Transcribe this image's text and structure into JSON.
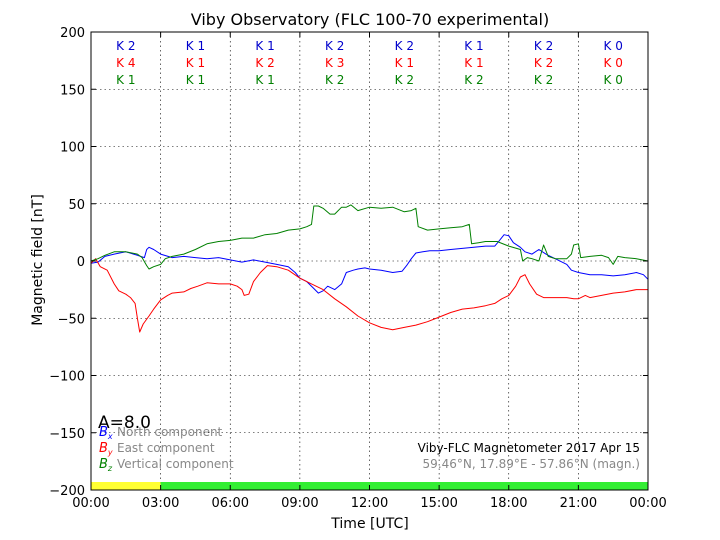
{
  "chart_data": {
    "type": "line",
    "title": "Viby Observatory (FLC 100-70 experimental)",
    "xlabel": "Time [UTC]",
    "ylabel": "Magnetic field [nT]",
    "xlim": [
      0,
      24
    ],
    "ylim": [
      -200,
      200
    ],
    "grid": true,
    "x_tick_values": [
      0,
      3,
      6,
      9,
      12,
      15,
      18,
      21,
      24
    ],
    "x_tick_labels": [
      "00:00",
      "03:00",
      "06:00",
      "09:00",
      "12:00",
      "15:00",
      "18:00",
      "21:00",
      "00:00"
    ],
    "y_ticks": [
      {
        "v": 200,
        "label": "200"
      },
      {
        "v": 150,
        "label": "150"
      },
      {
        "v": 100,
        "label": "100"
      },
      {
        "v": 50,
        "label": "50"
      },
      {
        "v": 0,
        "label": "0"
      },
      {
        "v": -50,
        "label": "−50"
      },
      {
        "v": -100,
        "label": "−100"
      },
      {
        "v": -150,
        "label": "−150"
      },
      {
        "v": -200,
        "label": "−200"
      }
    ],
    "series": [
      {
        "name": "North component",
        "symbol": "B",
        "subscript": "x",
        "color": "#0000ff",
        "points": [
          [
            0,
            -2
          ],
          [
            0.3,
            -1
          ],
          [
            0.6,
            4
          ],
          [
            1,
            6
          ],
          [
            1.5,
            8
          ],
          [
            2,
            5
          ],
          [
            2.3,
            3
          ],
          [
            2.4,
            10
          ],
          [
            2.5,
            12
          ],
          [
            2.7,
            10
          ],
          [
            3,
            6
          ],
          [
            3.5,
            3
          ],
          [
            4,
            4
          ],
          [
            4.5,
            3
          ],
          [
            5,
            2
          ],
          [
            5.5,
            3
          ],
          [
            6,
            1
          ],
          [
            6.5,
            -1
          ],
          [
            7,
            1
          ],
          [
            7.5,
            -1
          ],
          [
            8,
            -3
          ],
          [
            8.5,
            -5
          ],
          [
            8.8,
            -10
          ],
          [
            9,
            -15
          ],
          [
            9.3,
            -18
          ],
          [
            9.6,
            -24
          ],
          [
            9.8,
            -28
          ],
          [
            10,
            -26
          ],
          [
            10.2,
            -22
          ],
          [
            10.5,
            -25
          ],
          [
            10.8,
            -20
          ],
          [
            11,
            -10
          ],
          [
            11.3,
            -8
          ],
          [
            11.5,
            -7
          ],
          [
            11.8,
            -6
          ],
          [
            12,
            -7
          ],
          [
            12.5,
            -8
          ],
          [
            13,
            -10
          ],
          [
            13.4,
            -9
          ],
          [
            13.6,
            -4
          ],
          [
            13.8,
            2
          ],
          [
            14,
            7
          ],
          [
            14.3,
            8
          ],
          [
            14.6,
            9
          ],
          [
            15,
            9
          ],
          [
            15.5,
            10
          ],
          [
            16,
            11
          ],
          [
            16.5,
            12
          ],
          [
            17,
            13
          ],
          [
            17.4,
            13
          ],
          [
            17.6,
            18
          ],
          [
            17.8,
            23
          ],
          [
            18,
            22
          ],
          [
            18.2,
            16
          ],
          [
            18.5,
            12
          ],
          [
            18.7,
            8
          ],
          [
            19,
            6
          ],
          [
            19.3,
            10
          ],
          [
            19.6,
            6
          ],
          [
            19.8,
            4
          ],
          [
            20,
            2
          ],
          [
            20.5,
            -3
          ],
          [
            20.7,
            -8
          ],
          [
            21,
            -10
          ],
          [
            21.5,
            -12
          ],
          [
            22,
            -12
          ],
          [
            22.5,
            -13
          ],
          [
            23,
            -12
          ],
          [
            23.5,
            -10
          ],
          [
            23.8,
            -12
          ],
          [
            24,
            -16
          ]
        ]
      },
      {
        "name": "East component",
        "symbol": "B",
        "subscript": "y",
        "color": "#ff0000",
        "points": [
          [
            0,
            -2
          ],
          [
            0.2,
            2
          ],
          [
            0.4,
            -5
          ],
          [
            0.7,
            -8
          ],
          [
            1,
            -20
          ],
          [
            1.2,
            -26
          ],
          [
            1.5,
            -29
          ],
          [
            1.7,
            -32
          ],
          [
            1.9,
            -37
          ],
          [
            2,
            -50
          ],
          [
            2.1,
            -62
          ],
          [
            2.25,
            -55
          ],
          [
            2.5,
            -48
          ],
          [
            2.7,
            -42
          ],
          [
            3,
            -34
          ],
          [
            3.3,
            -30
          ],
          [
            3.5,
            -28
          ],
          [
            4,
            -27
          ],
          [
            4.3,
            -24
          ],
          [
            4.6,
            -22
          ],
          [
            5,
            -19
          ],
          [
            5.5,
            -20
          ],
          [
            6,
            -20
          ],
          [
            6.3,
            -22
          ],
          [
            6.5,
            -25
          ],
          [
            6.6,
            -30
          ],
          [
            6.8,
            -29
          ],
          [
            7,
            -18
          ],
          [
            7.3,
            -10
          ],
          [
            7.6,
            -4
          ],
          [
            8,
            -5
          ],
          [
            8.5,
            -8
          ],
          [
            9,
            -15
          ],
          [
            9.5,
            -20
          ],
          [
            10,
            -25
          ],
          [
            10.5,
            -33
          ],
          [
            11,
            -40
          ],
          [
            11.5,
            -48
          ],
          [
            12,
            -54
          ],
          [
            12.5,
            -58
          ],
          [
            13,
            -60
          ],
          [
            13.5,
            -58
          ],
          [
            14,
            -56
          ],
          [
            14.5,
            -53
          ],
          [
            15,
            -49
          ],
          [
            15.5,
            -45
          ],
          [
            16,
            -42
          ],
          [
            16.5,
            -41
          ],
          [
            17,
            -39
          ],
          [
            17.4,
            -37
          ],
          [
            17.7,
            -33
          ],
          [
            18,
            -30
          ],
          [
            18.3,
            -22
          ],
          [
            18.5,
            -14
          ],
          [
            18.7,
            -12
          ],
          [
            18.9,
            -20
          ],
          [
            19.2,
            -29
          ],
          [
            19.5,
            -32
          ],
          [
            20,
            -32
          ],
          [
            20.5,
            -32
          ],
          [
            20.8,
            -33
          ],
          [
            21,
            -33
          ],
          [
            21.3,
            -30
          ],
          [
            21.5,
            -32
          ],
          [
            22,
            -30
          ],
          [
            22.5,
            -28
          ],
          [
            23,
            -27
          ],
          [
            23.5,
            -25
          ],
          [
            24,
            -25
          ]
        ]
      },
      {
        "name": "Vertical component",
        "symbol": "B",
        "subscript": "z",
        "color": "#008000",
        "points": [
          [
            0,
            0
          ],
          [
            0.3,
            2
          ],
          [
            0.6,
            5
          ],
          [
            1,
            8
          ],
          [
            1.5,
            8
          ],
          [
            2,
            6
          ],
          [
            2.2,
            3
          ],
          [
            2.4,
            -4
          ],
          [
            2.5,
            -7
          ],
          [
            2.7,
            -5
          ],
          [
            3,
            -3
          ],
          [
            3.2,
            2
          ],
          [
            3.5,
            4
          ],
          [
            4,
            6
          ],
          [
            4.5,
            10
          ],
          [
            5,
            15
          ],
          [
            5.5,
            17
          ],
          [
            6,
            18
          ],
          [
            6.5,
            20
          ],
          [
            7,
            20
          ],
          [
            7.5,
            23
          ],
          [
            8,
            24
          ],
          [
            8.5,
            27
          ],
          [
            9,
            28
          ],
          [
            9.3,
            30
          ],
          [
            9.5,
            32
          ],
          [
            9.6,
            48
          ],
          [
            9.8,
            48
          ],
          [
            10,
            46
          ],
          [
            10.3,
            41
          ],
          [
            10.5,
            41
          ],
          [
            10.8,
            47
          ],
          [
            11,
            47
          ],
          [
            11.2,
            49
          ],
          [
            11.5,
            44
          ],
          [
            12,
            47
          ],
          [
            12.5,
            46
          ],
          [
            13,
            47
          ],
          [
            13.5,
            43
          ],
          [
            13.8,
            44
          ],
          [
            14,
            46
          ],
          [
            14.1,
            30
          ],
          [
            14.5,
            27
          ],
          [
            15,
            28
          ],
          [
            15.5,
            29
          ],
          [
            16,
            30
          ],
          [
            16.3,
            32
          ],
          [
            16.4,
            15
          ],
          [
            16.7,
            16
          ],
          [
            17,
            17
          ],
          [
            17.5,
            17
          ],
          [
            18,
            13
          ],
          [
            18.5,
            10
          ],
          [
            18.6,
            0
          ],
          [
            18.8,
            3
          ],
          [
            19,
            2
          ],
          [
            19.3,
            0
          ],
          [
            19.5,
            14
          ],
          [
            19.7,
            4
          ],
          [
            20,
            2
          ],
          [
            20.5,
            2
          ],
          [
            20.7,
            6
          ],
          [
            20.8,
            14
          ],
          [
            21,
            15
          ],
          [
            21.1,
            3
          ],
          [
            21.5,
            4
          ],
          [
            22,
            5
          ],
          [
            22.3,
            3
          ],
          [
            22.5,
            -3
          ],
          [
            22.7,
            4
          ],
          [
            23,
            3
          ],
          [
            23.5,
            2
          ],
          [
            24,
            0
          ]
        ]
      }
    ],
    "k_rows": [
      {
        "color": "#0000cc",
        "labels": [
          "K 2",
          "K 1",
          "K 1",
          "K 2",
          "K 2",
          "K 1",
          "K 2",
          "K 0"
        ]
      },
      {
        "color": "#ff0000",
        "labels": [
          "K 4",
          "K 1",
          "K 2",
          "K 3",
          "K 1",
          "K 1",
          "K 2",
          "K 0"
        ]
      },
      {
        "color": "#008000",
        "labels": [
          "K 1",
          "K 1",
          "K 1",
          "K 2",
          "K 2",
          "K 2",
          "K 2",
          "K 0"
        ]
      }
    ],
    "a_index": "A=8.0",
    "annotation_line1": "Viby-FLC Magnetometer 2017 Apr 15",
    "annotation_line2": "59.46°N, 17.89°E - 57.86°N (magn.)",
    "quality_bar": [
      {
        "from": 0,
        "to": 3,
        "color": "#ffff33"
      },
      {
        "from": 3,
        "to": 24,
        "color": "#33ee33"
      }
    ]
  }
}
